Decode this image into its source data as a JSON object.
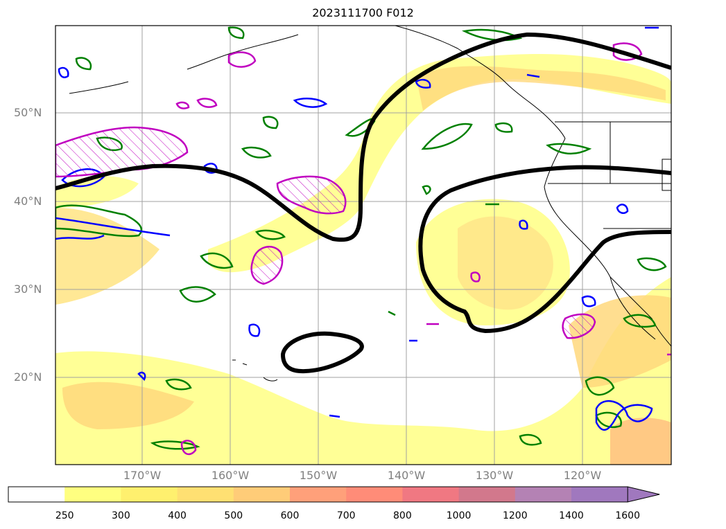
{
  "title": "2023111700 F012",
  "lat_labels": [
    "50°N",
    "40°N",
    "30°N",
    "20°N"
  ],
  "lon_labels": [
    "170°W",
    "160°W",
    "150°W",
    "140°W",
    "130°W",
    "120°W"
  ],
  "colorbar": {
    "ticks": [
      "250",
      "300",
      "400",
      "500",
      "600",
      "700",
      "800",
      "1000",
      "1200",
      "1400",
      "1600"
    ],
    "colors": [
      "#ffffff",
      "#ffff80",
      "#fff06e",
      "#ffe072",
      "#ffcc78",
      "#ffa07a",
      "#ff8c78",
      "#f07882",
      "#d2788c",
      "#b482b4",
      "#a078be"
    ],
    "extend": "max"
  },
  "map": {
    "lon_range": [
      -180,
      -110
    ],
    "lat_range": [
      10,
      60
    ],
    "gridlines": true,
    "contour_colors": {
      "jet_line": "#000000",
      "green": "#008000",
      "blue": "#0000ff",
      "magenta": "#c000c0",
      "fill": "#ffff80"
    }
  }
}
